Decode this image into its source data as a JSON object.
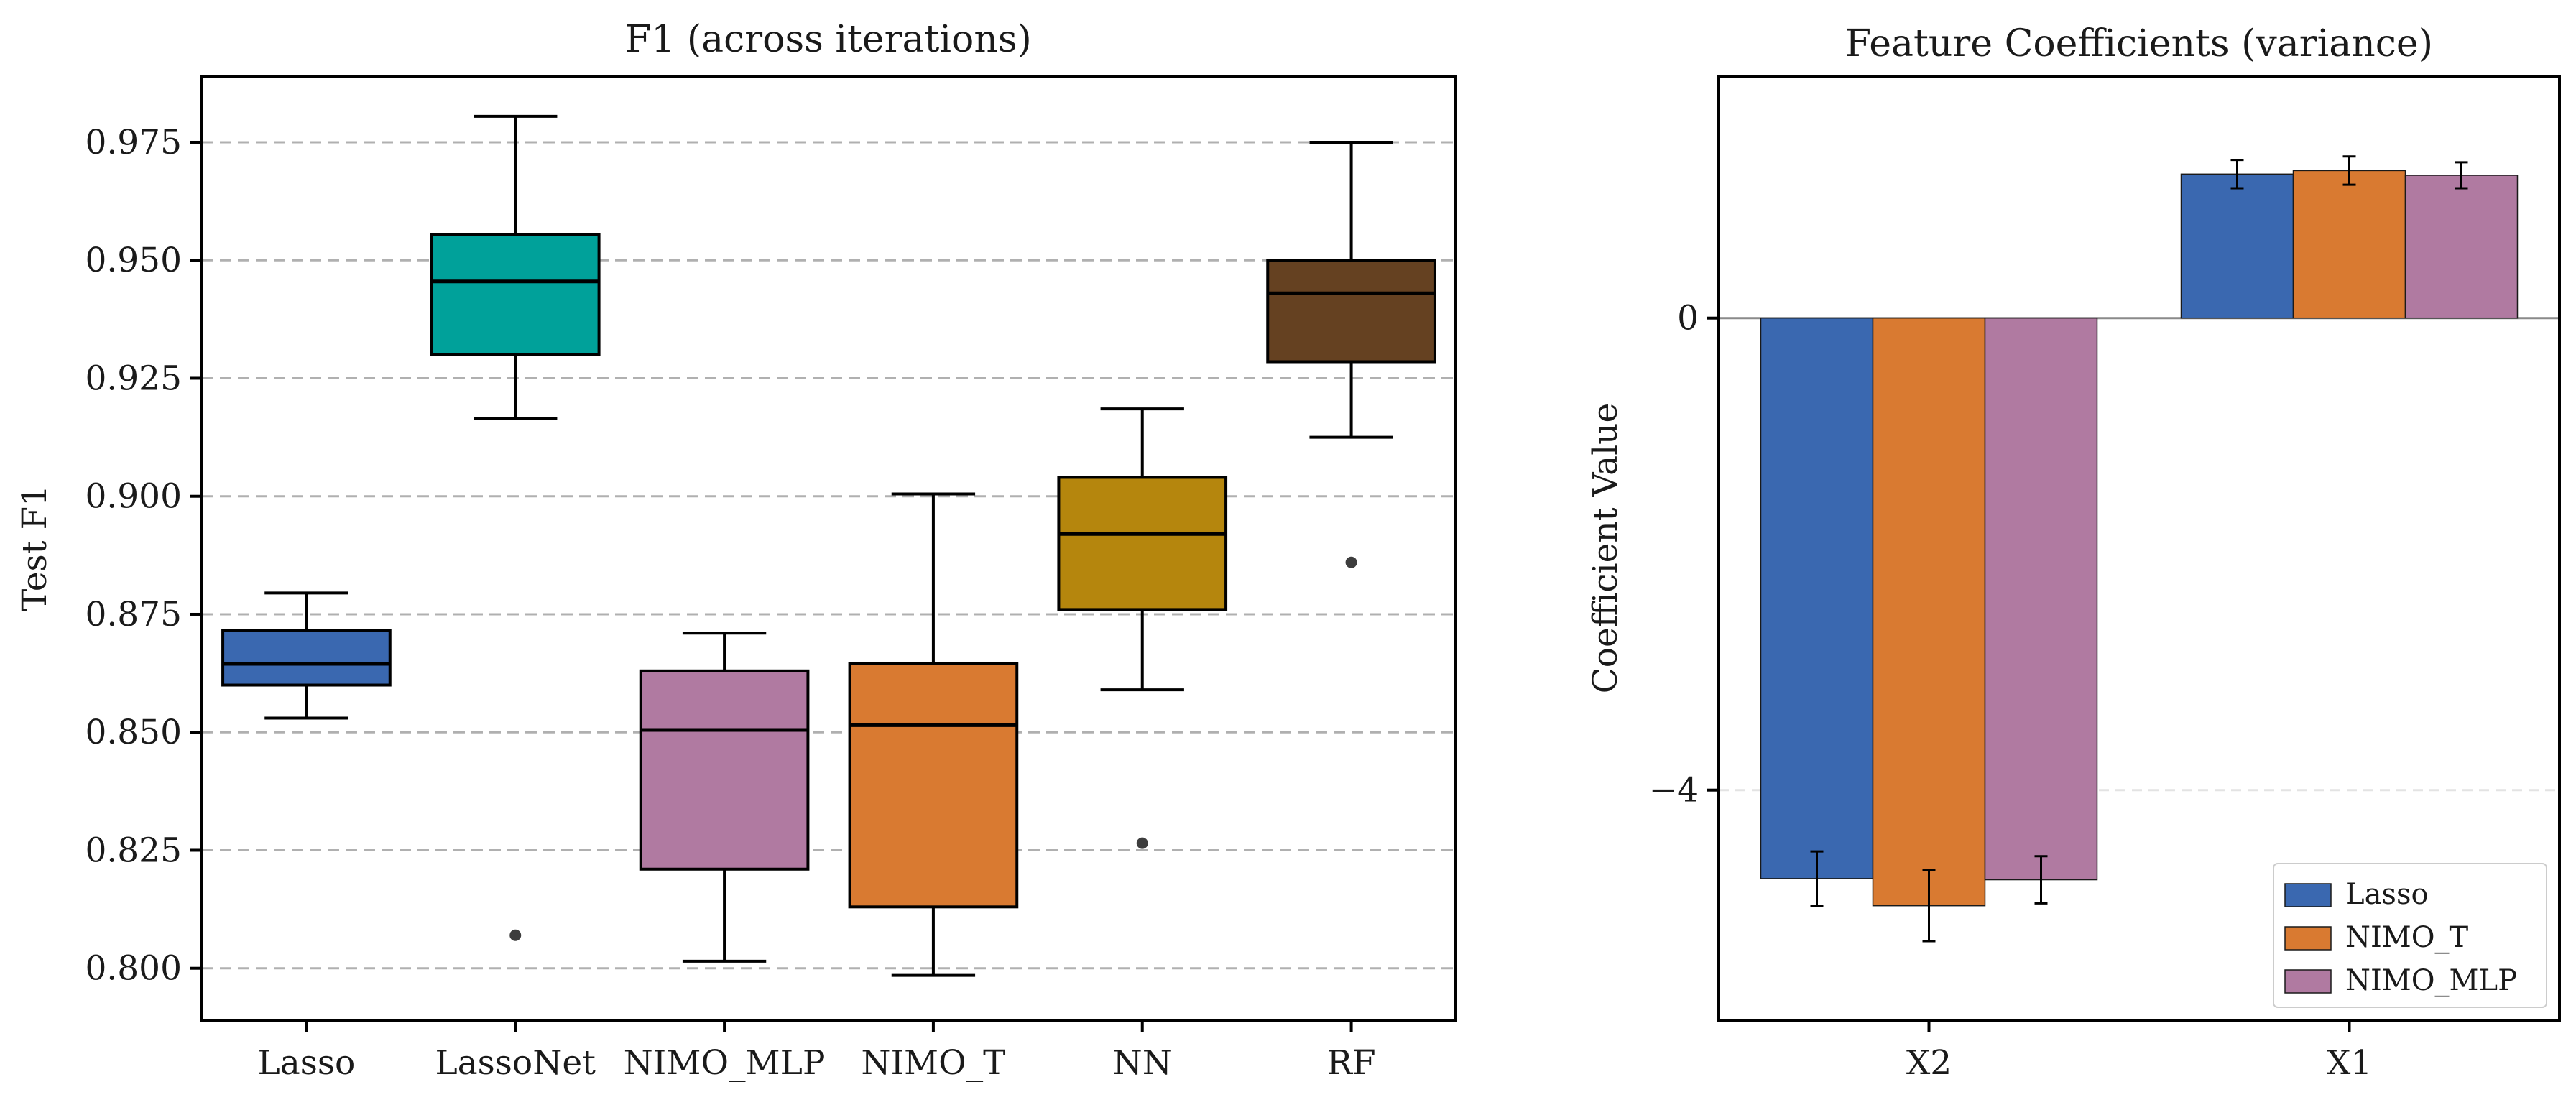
{
  "chart_data": [
    {
      "type": "box",
      "title": "F1 (across iterations)",
      "xlabel": "",
      "ylabel": "Test F1",
      "ylim": [
        0.789,
        0.989
      ],
      "yticks": [
        0.8,
        0.825,
        0.85,
        0.875,
        0.9,
        0.925,
        0.95,
        0.975
      ],
      "ytick_labels": [
        "0.800",
        "0.825",
        "0.850",
        "0.875",
        "0.900",
        "0.925",
        "0.950",
        "0.975"
      ],
      "grid": "y-dashed",
      "categories": [
        "Lasso",
        "LassoNet",
        "NIMO_MLP",
        "NIMO_T",
        "NN",
        "RF"
      ],
      "boxes": [
        {
          "name": "Lasso",
          "whisker_low": 0.853,
          "q1": 0.86,
          "median": 0.8645,
          "q3": 0.8715,
          "whisker_high": 0.8795,
          "outliers": [],
          "color": "#3a68b0"
        },
        {
          "name": "LassoNet",
          "whisker_low": 0.9165,
          "q1": 0.93,
          "median": 0.9455,
          "q3": 0.9555,
          "whisker_high": 0.9805,
          "outliers": [
            0.807
          ],
          "color": "#00a19a"
        },
        {
          "name": "NIMO_MLP",
          "whisker_low": 0.8015,
          "q1": 0.821,
          "median": 0.8505,
          "q3": 0.863,
          "whisker_high": 0.871,
          "outliers": [],
          "color": "#b07aa1"
        },
        {
          "name": "NIMO_T",
          "whisker_low": 0.7985,
          "q1": 0.813,
          "median": 0.8515,
          "q3": 0.8645,
          "whisker_high": 0.9005,
          "outliers": [],
          "color": "#d97a31"
        },
        {
          "name": "NN",
          "whisker_low": 0.859,
          "q1": 0.876,
          "median": 0.892,
          "q3": 0.904,
          "whisker_high": 0.9185,
          "outliers": [
            0.8265
          ],
          "color": "#b5860d"
        },
        {
          "name": "RF",
          "whisker_low": 0.9125,
          "q1": 0.9285,
          "median": 0.943,
          "q3": 0.95,
          "whisker_high": 0.975,
          "outliers": [
            0.886
          ],
          "color": "#654121"
        }
      ]
    },
    {
      "type": "bar",
      "title": "Feature Coefficients (variance)",
      "xlabel": "",
      "ylabel": "Coefficient Value",
      "ylim": [
        -5.95,
        2.05
      ],
      "yticks": [
        0,
        -4
      ],
      "ytick_labels": [
        "0",
        "−4"
      ],
      "grid": "y-dashed",
      "categories": [
        "X2",
        "X1"
      ],
      "series": [
        {
          "name": "Lasso",
          "color": "#3a68b0",
          "values": [
            -4.75,
            1.22
          ],
          "errors": [
            0.23,
            0.12
          ]
        },
        {
          "name": "NIMO_T",
          "color": "#d97a31",
          "values": [
            -4.98,
            1.25
          ],
          "errors": [
            0.3,
            0.12
          ]
        },
        {
          "name": "NIMO_MLP",
          "color": "#b07aa1",
          "values": [
            -4.76,
            1.21
          ],
          "errors": [
            0.2,
            0.11
          ]
        }
      ],
      "legend": "lower-right"
    }
  ]
}
